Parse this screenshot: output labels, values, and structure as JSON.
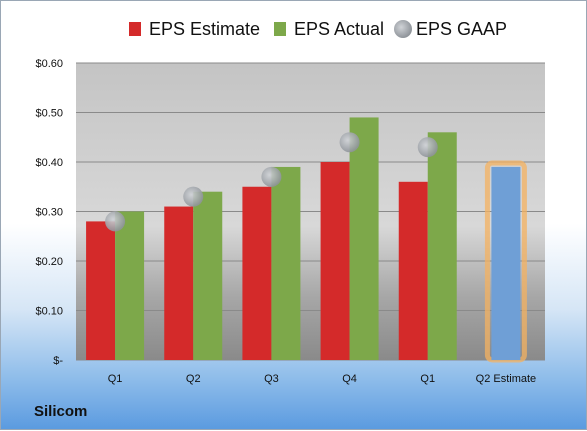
{
  "chart_data": {
    "type": "bar",
    "title": "",
    "company": "Silicom",
    "categories": [
      "Q1",
      "Q2",
      "Q3",
      "Q4",
      "Q1",
      "Q2 Estimate"
    ],
    "series": [
      {
        "name": "EPS Estimate",
        "color": "#d42a2a",
        "values": [
          0.28,
          0.31,
          0.35,
          0.4,
          0.36,
          null
        ]
      },
      {
        "name": "EPS Actual",
        "color": "#7da84a",
        "values": [
          0.3,
          0.34,
          0.39,
          0.49,
          0.46,
          0.39
        ],
        "highlight_color": "#6f9fd6"
      },
      {
        "name": "EPS GAAP",
        "color": "#a9adb3",
        "marker": "circle",
        "values": [
          0.28,
          0.33,
          0.37,
          0.44,
          0.43,
          null
        ]
      }
    ],
    "y_ticks": [
      {
        "value": 0,
        "label": "$-"
      },
      {
        "value": 0.1,
        "label": "$0.10"
      },
      {
        "value": 0.2,
        "label": "$0.20"
      },
      {
        "value": 0.3,
        "label": "$0.30"
      },
      {
        "value": 0.4,
        "label": "$0.40"
      },
      {
        "value": 0.5,
        "label": "$0.50"
      },
      {
        "value": 0.6,
        "label": "$0.60"
      }
    ],
    "ylim": [
      0,
      0.6
    ],
    "grid": true,
    "legend_position": "top"
  }
}
